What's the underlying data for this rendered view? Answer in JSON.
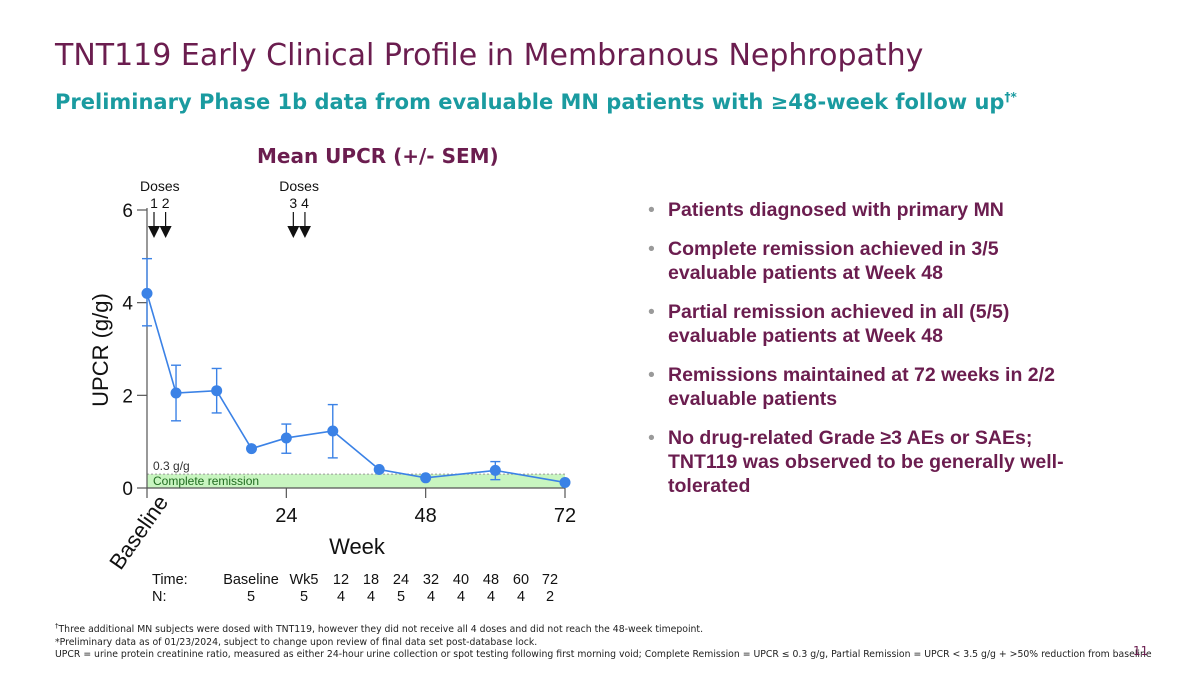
{
  "slide": {
    "title": "TNT119 Early Clinical Profile in Membranous Nephropathy",
    "subtitle": "Preliminary Phase 1b data from evaluable MN patients with ≥48-week follow up",
    "subtitle_mark": "†*",
    "page_number": "11"
  },
  "bullets": [
    "Patients diagnosed with primary MN",
    "Complete remission achieved in 3/5 evaluable patients at Week 48",
    "Partial remission achieved in all (5/5) evaluable patients at Week 48",
    "Remissions maintained at 72 weeks in 2/2 evaluable patients",
    "No drug-related Grade ≥3 AEs or SAEs; TNT119 was observed to be generally well-tolerated"
  ],
  "footnotes": {
    "f1_mark": "†",
    "f1": "Three additional MN subjects were dosed with TNT119, however they did not receive all 4 doses and did not reach the 48-week timepoint.",
    "f2": "*Preliminary data as of 01/23/2024, subject to change upon review of final data set post-database lock.",
    "f3": "UPCR = urine protein creatinine ratio, measured as either 24-hour urine collection or spot testing following first morning void; Complete Remission = UPCR ≤ 0.3 g/g, Partial Remission = UPCR < 3.5 g/g + >50% reduction from baseline"
  },
  "chart_data": {
    "type": "line",
    "title": "Mean UPCR (+/- SEM)",
    "xlabel": "Week",
    "ylabel": "UPCR (g/g)",
    "xlim": [
      0,
      72
    ],
    "ylim": [
      0,
      6
    ],
    "x_ticks": [
      "Baseline",
      "24",
      "48",
      "72"
    ],
    "x_tick_values": [
      0,
      24,
      48,
      72
    ],
    "y_ticks": [
      0,
      2,
      4,
      6
    ],
    "grid": false,
    "series": [
      {
        "points": [
          {
            "x": 0,
            "y": 4.2,
            "sem_low": 3.5,
            "sem_high": 4.95
          },
          {
            "x": 5,
            "y": 2.05,
            "sem_low": 1.45,
            "sem_high": 2.65
          },
          {
            "x": 12,
            "y": 2.1,
            "sem_low": 1.62,
            "sem_high": 2.58
          },
          {
            "x": 18,
            "y": 0.85
          },
          {
            "x": 24,
            "y": 1.08,
            "sem_low": 0.75,
            "sem_high": 1.38
          },
          {
            "x": 32,
            "y": 1.23,
            "sem_low": 0.65,
            "sem_high": 1.8
          },
          {
            "x": 40,
            "y": 0.4
          },
          {
            "x": 48,
            "y": 0.22
          },
          {
            "x": 60,
            "y": 0.38,
            "sem_low": 0.18,
            "sem_high": 0.57
          },
          {
            "x": 72,
            "y": 0.12
          }
        ],
        "color": "#3b82e6"
      }
    ],
    "complete_remission_band": {
      "y_max": 0.3,
      "threshold_label": "0.3 g/g",
      "label": "Complete remission",
      "color": "#c8f5c0"
    },
    "doses": [
      {
        "label": "Doses",
        "numbers": "1 2",
        "weeks": [
          0,
          2
        ]
      },
      {
        "label": "Doses",
        "numbers": "3 4",
        "weeks": [
          24,
          26
        ]
      }
    ],
    "table": {
      "row_labels": [
        "Time:",
        "N:"
      ],
      "time": [
        "Baseline",
        "Wk5",
        "12",
        "18",
        "24",
        "32",
        "40",
        "48",
        "60",
        "72"
      ],
      "n": [
        "5",
        "5",
        "4",
        "4",
        "5",
        "4",
        "4",
        "4",
        "4",
        "2"
      ]
    }
  }
}
